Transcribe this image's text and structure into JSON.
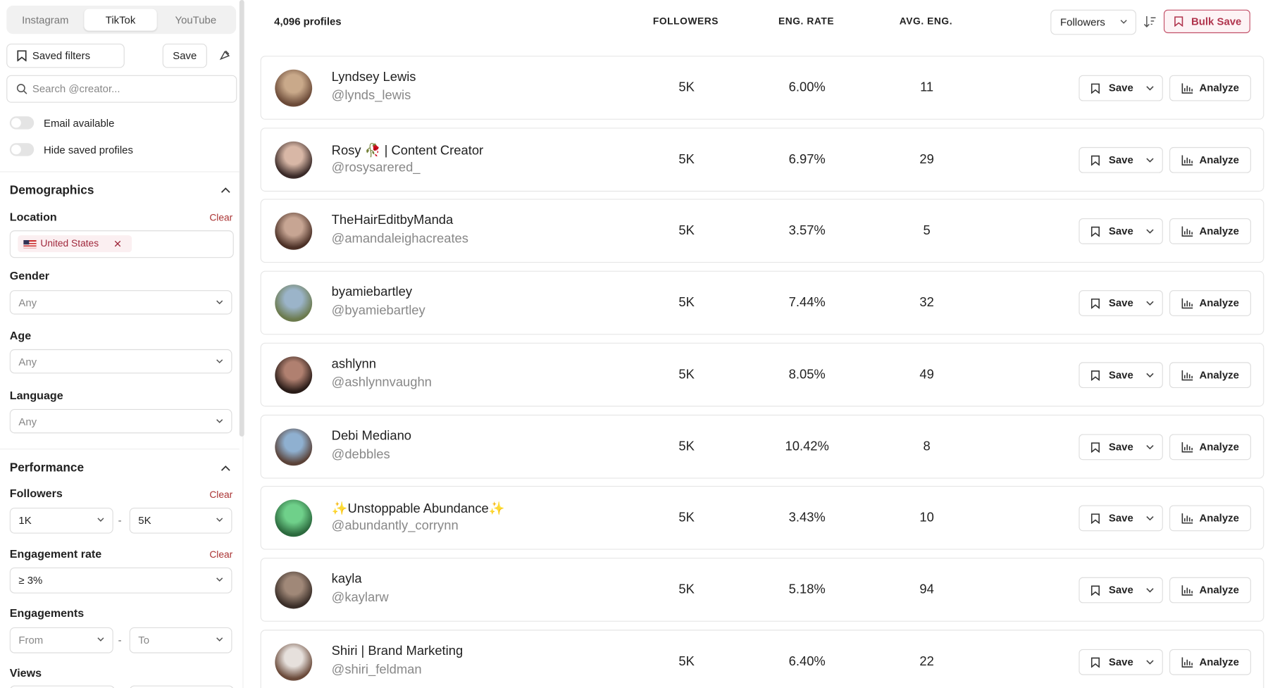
{
  "sidebar": {
    "platform_tabs": [
      "Instagram",
      "TikTok",
      "YouTube"
    ],
    "saved_filters": "Saved filters",
    "save": "Save",
    "search_placeholder": "Search @creator...",
    "toggles": [
      "Email available",
      "Hide saved profiles"
    ],
    "demographics": {
      "title": "Demographics",
      "location_label": "Location",
      "clear": "Clear",
      "location_chip": "United States",
      "gender_label": "Gender",
      "gender_value": "Any",
      "age_label": "Age",
      "age_value": "Any",
      "language_label": "Language",
      "language_value": "Any"
    },
    "performance": {
      "title": "Performance",
      "followers_label": "Followers",
      "followers_min": "1K",
      "range_separator": "-",
      "followers_max": "5K",
      "engagement_rate_label": "Engagement rate",
      "engagement_rate_value": "≥ 3%",
      "engagements_label": "Engagements",
      "engagements_from": "From",
      "engagements_to": "To",
      "views_label": "Views"
    }
  },
  "header": {
    "count": "4,096 profiles",
    "columns": [
      "FOLLOWERS",
      "ENG. RATE",
      "AVG. ENG."
    ],
    "sort": "Followers",
    "bulk_save": "Bulk Save"
  },
  "row_actions": {
    "save": "Save",
    "analyze": "Analyze"
  },
  "rows": [
    {
      "name": "Lyndsey Lewis",
      "handle": "@lynds_lewis",
      "followers": "5K",
      "eng_rate": "6.00%",
      "avg_eng": 11
    },
    {
      "name": "Rosy 🥀 | Content Creator",
      "handle": "@rosysarered_",
      "followers": "5K",
      "eng_rate": "6.97%",
      "avg_eng": 29
    },
    {
      "name": "TheHairEditbyManda",
      "handle": "@amandaleighacreates",
      "followers": "5K",
      "eng_rate": "3.57%",
      "avg_eng": 5
    },
    {
      "name": "byamiebartley",
      "handle": "@byamiebartley",
      "followers": "5K",
      "eng_rate": "7.44%",
      "avg_eng": 32
    },
    {
      "name": "ashlynn",
      "handle": "@ashlynnvaughn",
      "followers": "5K",
      "eng_rate": "8.05%",
      "avg_eng": 49
    },
    {
      "name": "Debi Mediano",
      "handle": "@debbles",
      "followers": "5K",
      "eng_rate": "10.42%",
      "avg_eng": 8
    },
    {
      "name": "✨Unstoppable Abundance✨",
      "handle": "@abundantly_corrynn",
      "followers": "5K",
      "eng_rate": "3.43%",
      "avg_eng": 10
    },
    {
      "name": "kayla",
      "handle": "@kaylarw",
      "followers": "5K",
      "eng_rate": "5.18%",
      "avg_eng": 94
    },
    {
      "name": "Shiri | Brand Marketing",
      "handle": "@shiri_feldman",
      "followers": "5K",
      "eng_rate": "6.40%",
      "avg_eng": 22
    }
  ]
}
